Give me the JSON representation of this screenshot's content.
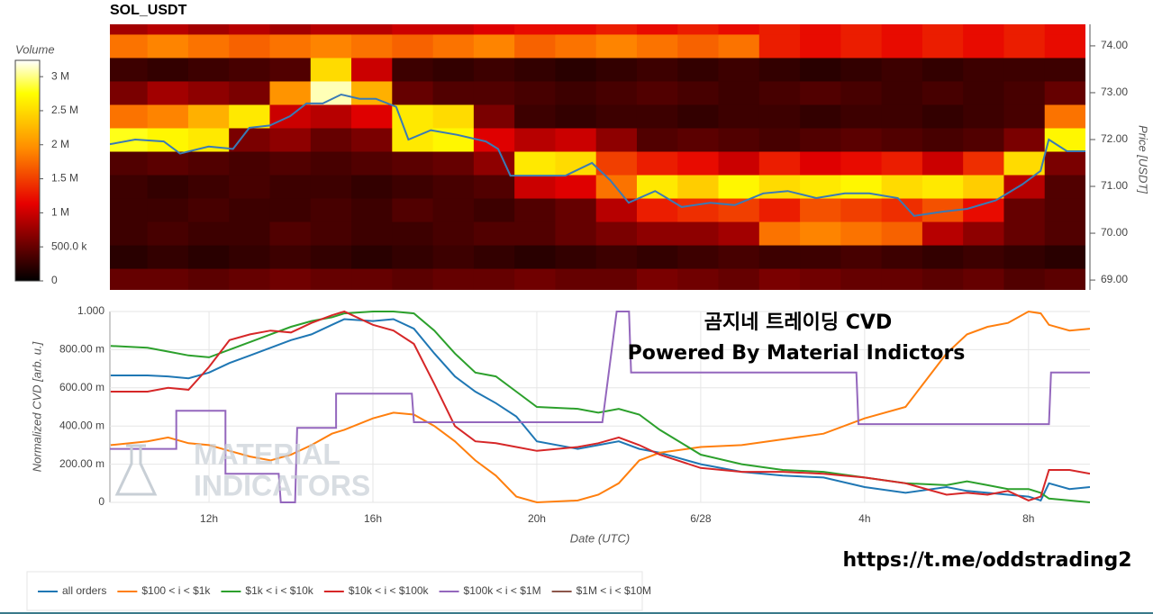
{
  "chart_data": [
    {
      "type": "heatmap",
      "title": "SOL_USDT",
      "y_label": "Price [USDT]",
      "x": [
        10,
        11,
        12,
        13,
        14,
        15,
        16,
        17,
        18,
        19,
        20,
        21,
        22,
        23,
        24,
        25,
        26,
        27,
        28,
        29,
        30,
        31,
        32,
        33
      ],
      "y": [
        69,
        69.5,
        70,
        70.5,
        71,
        71.5,
        72,
        72.5,
        73,
        73.5,
        74,
        74.5
      ],
      "z": [
        [
          500000,
          500000,
          450000,
          500000,
          550000,
          500000,
          500000,
          450000,
          500000,
          500000,
          550000,
          500000,
          500000,
          600000,
          550000,
          500000,
          600000,
          550000,
          500000,
          500000,
          450000,
          500000,
          400000,
          450000
        ],
        [
          200000,
          250000,
          200000,
          250000,
          300000,
          250000,
          200000,
          250000,
          300000,
          250000,
          200000,
          250000,
          300000,
          250000,
          300000,
          350000,
          300000,
          300000,
          350000,
          300000,
          250000,
          300000,
          250000,
          200000
        ],
        [
          300000,
          350000,
          300000,
          300000,
          400000,
          350000,
          300000,
          300000,
          350000,
          400000,
          400000,
          500000,
          600000,
          700000,
          700000,
          800000,
          1800000,
          1900000,
          1800000,
          1700000,
          900000,
          700000,
          500000,
          400000
        ],
        [
          300000,
          300000,
          350000,
          300000,
          300000,
          350000,
          300000,
          400000,
          350000,
          300000,
          400000,
          500000,
          900000,
          1300000,
          1400000,
          1500000,
          1300000,
          1600000,
          1500000,
          1400000,
          1600000,
          1200000,
          500000,
          400000
        ],
        [
          300000,
          250000,
          300000,
          350000,
          300000,
          300000,
          250000,
          300000,
          350000,
          400000,
          1000000,
          1100000,
          1800000,
          2600000,
          2400000,
          2700000,
          2500000,
          2600000,
          2700000,
          2500000,
          2600000,
          2400000,
          900000,
          400000
        ],
        [
          400000,
          450000,
          400000,
          350000,
          400000,
          350000,
          400000,
          450000,
          500000,
          700000,
          2600000,
          2500000,
          1500000,
          1300000,
          1200000,
          1000000,
          1300000,
          1100000,
          1200000,
          1300000,
          1000000,
          1400000,
          2500000,
          600000
        ],
        [
          2800000,
          2700000,
          2600000,
          600000,
          700000,
          500000,
          600000,
          2600000,
          2700000,
          1100000,
          900000,
          1000000,
          700000,
          400000,
          450000,
          400000,
          350000,
          400000,
          450000,
          400000,
          350000,
          400000,
          600000,
          2700000
        ],
        [
          1800000,
          1900000,
          2200000,
          2600000,
          1000000,
          900000,
          1100000,
          2600000,
          2500000,
          600000,
          300000,
          250000,
          300000,
          300000,
          250000,
          300000,
          300000,
          250000,
          300000,
          300000,
          250000,
          300000,
          350000,
          1800000
        ],
        [
          600000,
          800000,
          700000,
          600000,
          2000000,
          3100000,
          2200000,
          500000,
          400000,
          400000,
          350000,
          300000,
          350000,
          400000,
          350000,
          300000,
          350000,
          400000,
          350000,
          300000,
          350000,
          300000,
          350000,
          500000
        ],
        [
          300000,
          250000,
          300000,
          350000,
          400000,
          2500000,
          1000000,
          300000,
          250000,
          300000,
          250000,
          200000,
          250000,
          300000,
          250000,
          300000,
          250000,
          200000,
          250000,
          300000,
          250000,
          300000,
          300000,
          300000
        ],
        [
          1800000,
          1900000,
          1800000,
          1700000,
          1800000,
          1900000,
          1800000,
          1700000,
          1800000,
          1900000,
          1700000,
          1800000,
          1900000,
          1800000,
          1700000,
          1800000,
          1300000,
          1200000,
          1300000,
          1200000,
          1300000,
          1200000,
          1300000,
          1200000
        ],
        [
          800000,
          900000,
          800000,
          900000,
          800000,
          900000,
          900000,
          1000000,
          1000000,
          1100000,
          1200000,
          1200000,
          1300000,
          1200000,
          1300000,
          1200000,
          1300000,
          1200000,
          1300000,
          1200000,
          1300000,
          1200000,
          1300000,
          1200000
        ]
      ],
      "colorscale": [
        [
          0,
          "#000000"
        ],
        [
          0.35,
          "#e60000"
        ],
        [
          0.6,
          "#ff8c00"
        ],
        [
          0.85,
          "#ffff00"
        ],
        [
          1,
          "#ffffff"
        ]
      ],
      "colorbar": {
        "title": "Volume",
        "clim": [
          0,
          3240000
        ],
        "ticks": [
          0,
          {
            "value": 500000,
            "label": "500.0 k"
          },
          {
            "value": 1000000,
            "label": "1 M"
          },
          {
            "value": 1500000,
            "label": "1.5 M"
          },
          {
            "value": 2000000,
            "label": "2 M"
          },
          {
            "value": 2500000,
            "label": "2.5 M"
          },
          {
            "value": 3000000,
            "label": "3 M"
          }
        ]
      },
      "xlim": [
        9.58,
        33.5
      ],
      "ylim": [
        68.79,
        74.46
      ],
      "yticks": [
        {
          "value": 69,
          "label": "69.00"
        },
        {
          "value": 70,
          "label": "70.00"
        },
        {
          "value": 71,
          "label": "71.00"
        },
        {
          "value": 72,
          "label": "72.00"
        },
        {
          "value": 73,
          "label": "73.00"
        },
        {
          "value": 74,
          "label": "74.00"
        }
      ],
      "series": [
        {
          "color": "#3a7ab5",
          "x": [
            9.58,
            10.2,
            10.9,
            11.3,
            12.0,
            12.6,
            13.0,
            13.5,
            14.0,
            14.4,
            14.8,
            15.25,
            15.7,
            16.1,
            16.6,
            16.9,
            17.45,
            18.1,
            18.8,
            19.1,
            19.4,
            20.1,
            20.75,
            21.4,
            21.85,
            22.3,
            22.95,
            23.6,
            24.3,
            24.9,
            25.6,
            26.2,
            26.9,
            27.6,
            28.2,
            28.9,
            29.3,
            30.0,
            30.6,
            31.3,
            31.95,
            32.4,
            32.6,
            33.05,
            33.5
          ],
          "values": [
            71.9,
            72.0,
            71.96,
            71.7,
            71.85,
            71.8,
            72.25,
            72.3,
            72.5,
            72.77,
            72.77,
            72.96,
            72.87,
            72.87,
            72.7,
            72.0,
            72.2,
            72.1,
            71.96,
            71.8,
            71.23,
            71.23,
            71.23,
            71.5,
            71.13,
            70.65,
            70.9,
            70.56,
            70.65,
            70.6,
            70.85,
            70.9,
            70.75,
            70.85,
            70.85,
            70.75,
            70.37,
            70.46,
            70.52,
            70.7,
            71.04,
            71.33,
            72.0,
            71.75,
            71.75
          ]
        }
      ]
    },
    {
      "type": "line",
      "x_label": "Date (UTC)",
      "y_label": "Normalized CVD [arb. u.]",
      "annotations": [
        "곰지네 트레이딩 CVD",
        "Powered By Material Indictors"
      ],
      "watermark": [
        "MATERIAL",
        "INDICATORS"
      ],
      "grid": true,
      "x": [
        9.6,
        10.5,
        11,
        11.5,
        12,
        12.5,
        13,
        13.5,
        14,
        14.5,
        15,
        15.3,
        16,
        16.5,
        17,
        17.5,
        18,
        18.5,
        19,
        19.5,
        20,
        21,
        21.5,
        22,
        22.5,
        23,
        24,
        25,
        26,
        27,
        28,
        29,
        30,
        30.5,
        31,
        31.5,
        32,
        32.3,
        32.5,
        33,
        33.5
      ],
      "xlim": [
        9.58,
        33.5
      ],
      "ylim": [
        0,
        1
      ],
      "xticks": [
        {
          "value": 12,
          "label": "12h"
        },
        {
          "value": 16,
          "label": "16h"
        },
        {
          "value": 20,
          "label": "20h"
        },
        {
          "value": 24,
          "label": "6/28"
        },
        {
          "value": 28,
          "label": "4h"
        },
        {
          "value": 32,
          "label": "8h"
        }
      ],
      "yticks": [
        0,
        {
          "value": 0.2,
          "label": "200.00 m"
        },
        {
          "value": 0.4,
          "label": "400.00 m"
        },
        {
          "value": 0.6,
          "label": "600.00 m"
        },
        {
          "value": 0.8,
          "label": "800.00 m"
        },
        {
          "value": 1,
          "label": "1.000"
        }
      ],
      "series": [
        {
          "name": "all orders",
          "color": "#1f77b4",
          "values": [
            0.665,
            0.665,
            0.66,
            0.65,
            0.68,
            0.73,
            0.77,
            0.81,
            0.85,
            0.88,
            0.93,
            0.96,
            0.95,
            0.96,
            0.91,
            0.78,
            0.66,
            0.58,
            0.52,
            0.45,
            0.32,
            0.28,
            0.3,
            0.32,
            0.28,
            0.26,
            0.2,
            0.16,
            0.14,
            0.13,
            0.08,
            0.05,
            0.08,
            0.06,
            0.05,
            0.04,
            0.03,
            0.01,
            0.1,
            0.07,
            0.08
          ]
        },
        {
          "name": "$100 < i < $1k",
          "color": "#ff7f0e",
          "values": [
            0.3,
            0.32,
            0.34,
            0.31,
            0.3,
            0.27,
            0.24,
            0.22,
            0.25,
            0.3,
            0.36,
            0.38,
            0.44,
            0.47,
            0.46,
            0.4,
            0.32,
            0.22,
            0.14,
            0.03,
            0,
            0.01,
            0.04,
            0.1,
            0.22,
            0.26,
            0.29,
            0.3,
            0.33,
            0.36,
            0.44,
            0.5,
            0.78,
            0.88,
            0.92,
            0.94,
            1.0,
            0.99,
            0.93,
            0.9,
            0.91
          ]
        },
        {
          "name": "$1k < i < $10k",
          "color": "#2ca02c",
          "values": [
            0.82,
            0.81,
            0.79,
            0.77,
            0.76,
            0.8,
            0.84,
            0.88,
            0.92,
            0.95,
            0.97,
            0.99,
            1.0,
            1.0,
            0.99,
            0.9,
            0.78,
            0.68,
            0.66,
            0.58,
            0.5,
            0.49,
            0.47,
            0.49,
            0.46,
            0.38,
            0.25,
            0.2,
            0.17,
            0.16,
            0.13,
            0.1,
            0.09,
            0.11,
            0.09,
            0.07,
            0.07,
            0.05,
            0.02,
            0.01,
            0
          ]
        },
        {
          "name": "$10k < i < $100k",
          "color": "#d62728",
          "values": [
            0.58,
            0.58,
            0.6,
            0.59,
            0.71,
            0.85,
            0.88,
            0.9,
            0.89,
            0.94,
            0.98,
            1.0,
            0.93,
            0.9,
            0.83,
            0.62,
            0.4,
            0.32,
            0.31,
            0.29,
            0.27,
            0.29,
            0.31,
            0.34,
            0.3,
            0.25,
            0.18,
            0.16,
            0.16,
            0.15,
            0.13,
            0.1,
            0.04,
            0.05,
            0.04,
            0.06,
            0.01,
            0.03,
            0.17,
            0.17,
            0.15
          ]
        },
        {
          "name": "$100k < i < $1M",
          "color": "#9467bd",
          "x": [
            9.58,
            11.2,
            11.2,
            12.4,
            12.4,
            13.7,
            13.75,
            14.1,
            14.15,
            15.1,
            15.1,
            16.95,
            17.0,
            21.6,
            21.95,
            22.25,
            22.3,
            27.8,
            27.85,
            32.5,
            32.55,
            33.5
          ],
          "values": [
            0.28,
            0.28,
            0.48,
            0.48,
            0.15,
            0.15,
            0,
            0,
            0.39,
            0.39,
            0.57,
            0.57,
            0.42,
            0.42,
            1.0,
            1.0,
            0.68,
            0.68,
            0.41,
            0.41,
            0.68,
            0.68
          ]
        },
        {
          "name": "$1M < i < $10M",
          "color": "#8c564b",
          "values": [
            null,
            null,
            null,
            null,
            null,
            null,
            null,
            null,
            null,
            null,
            null,
            null,
            null,
            null,
            null,
            null,
            null,
            null,
            null,
            null,
            null,
            null,
            null,
            null,
            null,
            null,
            null,
            null,
            null,
            null,
            null,
            null,
            null,
            null,
            null,
            null,
            null,
            null,
            null,
            null,
            null
          ]
        }
      ]
    }
  ],
  "footer": {
    "link": "https://t.me/oddstrading2"
  }
}
